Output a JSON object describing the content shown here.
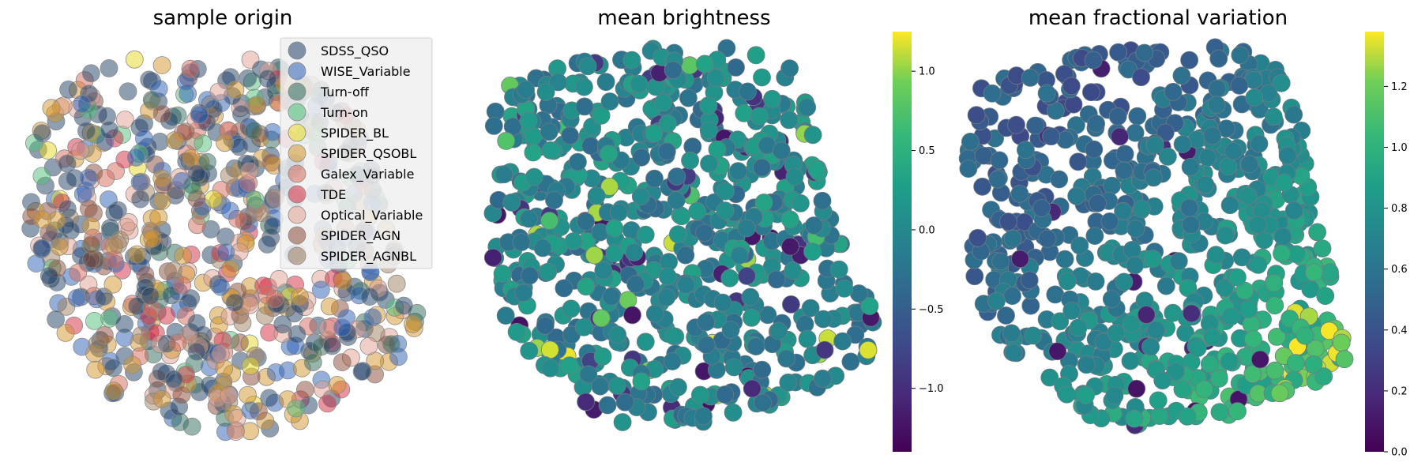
{
  "chart_data": [
    {
      "type": "scatter",
      "title": "sample origin",
      "xlabel": "",
      "ylabel": "",
      "legend_position": "top-right",
      "legend": [
        {
          "name": "SDSS_QSO",
          "color": "#1f3f66"
        },
        {
          "name": "WISE_Variable",
          "color": "#2b5fb8"
        },
        {
          "name": "Turn-off",
          "color": "#2e6b5c"
        },
        {
          "name": "Turn-on",
          "color": "#4fc07a"
        },
        {
          "name": "SPIDER_BL",
          "color": "#e8d820"
        },
        {
          "name": "SPIDER_QSOBL",
          "color": "#d4942a"
        },
        {
          "name": "Galex_Variable",
          "color": "#d5695a"
        },
        {
          "name": "TDE",
          "color": "#d62a40"
        },
        {
          "name": "Optical_Variable",
          "color": "#e0a090"
        },
        {
          "name": "SPIDER_AGN",
          "color": "#8a4a36"
        },
        {
          "name": "SPIDER_AGNBL",
          "color": "#a08060"
        }
      ]
    },
    {
      "type": "scatter",
      "title": "mean brightness",
      "colormap": "viridis",
      "colorbar": {
        "min": -1.4,
        "max": 1.25,
        "ticks": [
          "1.0",
          "0.5",
          "0.0",
          "−0.5",
          "−1.0"
        ],
        "tick_values": [
          1.0,
          0.5,
          0.0,
          -0.5,
          -1.0
        ]
      }
    },
    {
      "type": "scatter",
      "title": "mean fractional variation",
      "colormap": "viridis",
      "colorbar": {
        "min": 0.0,
        "max": 1.38,
        "ticks": [
          "1.2",
          "1.0",
          "0.8",
          "0.6",
          "0.4",
          "0.2",
          "0.0"
        ],
        "tick_values": [
          1.2,
          1.0,
          0.8,
          0.6,
          0.4,
          0.2,
          0.0
        ]
      }
    }
  ]
}
